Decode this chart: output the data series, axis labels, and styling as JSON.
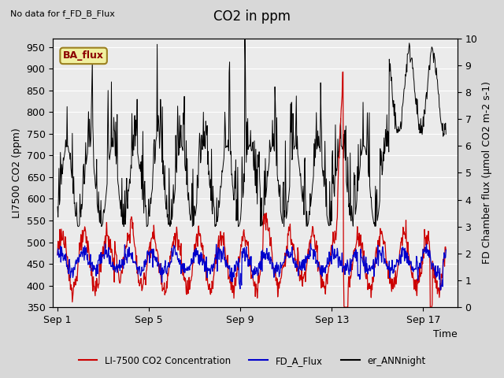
{
  "title": "CO2 in ppm",
  "top_left_text": "No data for f_FD_B_Flux",
  "box_label": "BA_flux",
  "xlabel": "Time",
  "ylabel_left": "LI7500 CO2 (ppm)",
  "ylabel_right": "FD Chamber flux (μmol CO2 m-2 s-1)",
  "ylim_left": [
    350,
    970
  ],
  "ylim_right": [
    0.0,
    10.0
  ],
  "yticks_left": [
    350,
    400,
    450,
    500,
    550,
    600,
    650,
    700,
    750,
    800,
    850,
    900,
    950
  ],
  "yticks_right": [
    0.0,
    1.0,
    2.0,
    3.0,
    4.0,
    5.0,
    6.0,
    7.0,
    8.0,
    9.0,
    10.0
  ],
  "xtick_labels": [
    "Sep 1",
    "Sep 5",
    "Sep 9",
    "Sep 13",
    "Sep 17"
  ],
  "xtick_positions": [
    0,
    4,
    8,
    12,
    16
  ],
  "xlim": [
    -0.2,
    17.5
  ],
  "fig_bg_color": "#d8d8d8",
  "plot_bg_color": "#ebebeb",
  "line_red_color": "#cc0000",
  "line_blue_color": "#0000cc",
  "line_black_color": "#000000",
  "legend_labels": [
    "LI-7500 CO2 Concentration",
    "FD_A_Flux",
    "er_ANNnight"
  ],
  "legend_colors": [
    "#cc0000",
    "#0000cc",
    "#000000"
  ],
  "title_fontsize": 12,
  "label_fontsize": 9,
  "tick_fontsize": 9
}
